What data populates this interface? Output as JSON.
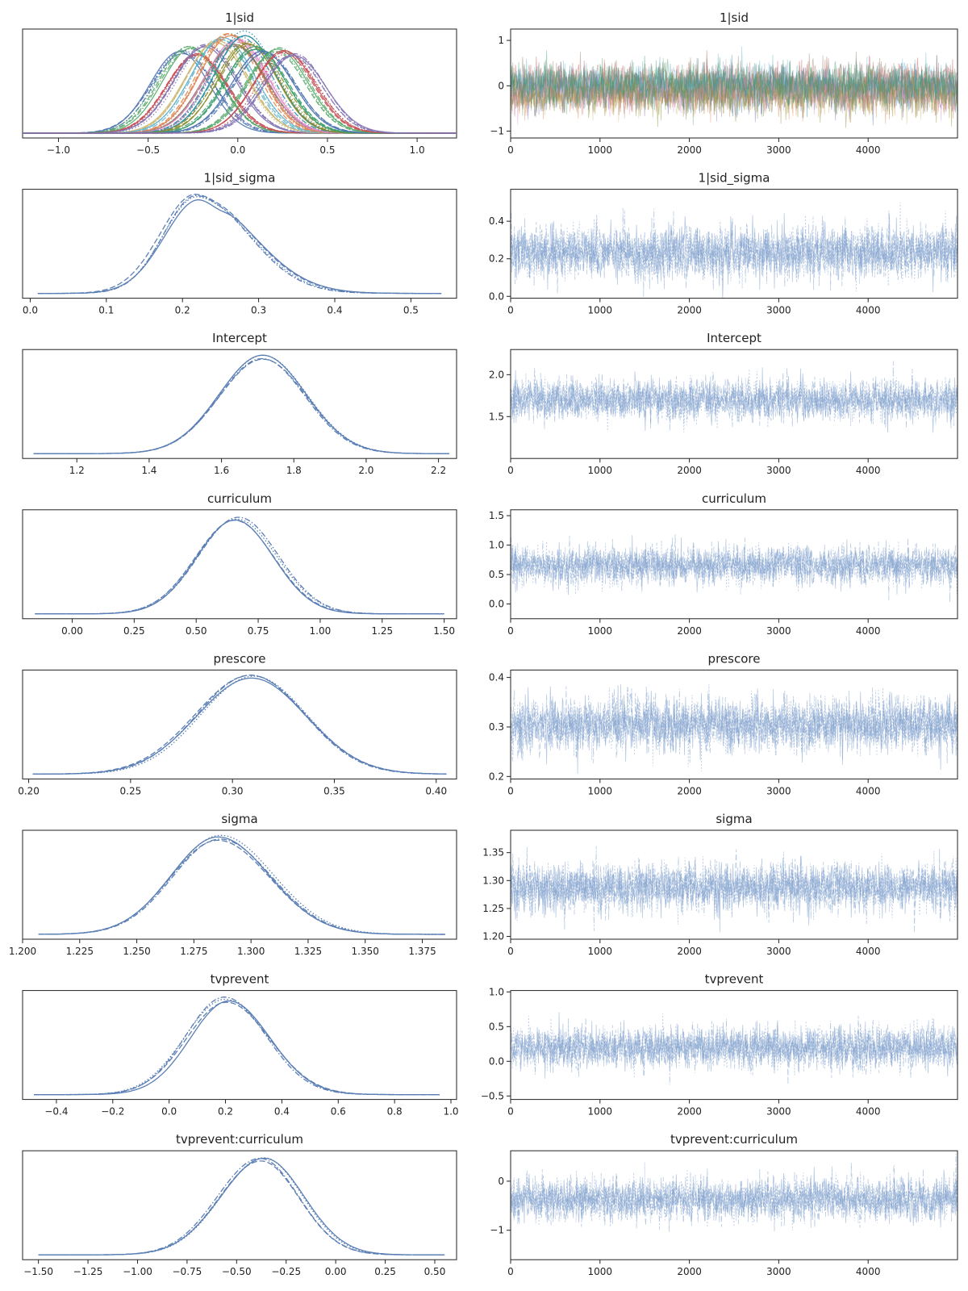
{
  "colors": {
    "primary": "#5b7fb5",
    "trace": "#7e9fcc",
    "multi": [
      "#4c72b0",
      "#55a868",
      "#c44e52",
      "#8172b2",
      "#ccb974",
      "#64b5cd",
      "#dd8452",
      "#937860",
      "#da8bc3",
      "#2f8fa3",
      "#8c8c2c",
      "#3a9c6d"
    ]
  },
  "chart_data": [
    {
      "name": "1|sid",
      "kde": {
        "type": "line",
        "title": "1|sid",
        "xlim": [
          -1.2,
          1.22
        ],
        "xticks": [
          -1.0,
          -0.5,
          0.0,
          0.5,
          1.0
        ],
        "xtick_labels": [
          "−1.0",
          "−0.5",
          "0.0",
          "0.5",
          "1.0"
        ],
        "multi_series": true,
        "groups": [
          {
            "mean": -0.31,
            "sd": 0.17,
            "peak": 0.82
          },
          {
            "mean": -0.27,
            "sd": 0.17,
            "peak": 0.85
          },
          {
            "mean": -0.22,
            "sd": 0.17,
            "peak": 0.78
          },
          {
            "mean": -0.17,
            "sd": 0.17,
            "peak": 0.88
          },
          {
            "mean": -0.12,
            "sd": 0.17,
            "peak": 0.92
          },
          {
            "mean": -0.08,
            "sd": 0.17,
            "peak": 0.95
          },
          {
            "mean": -0.05,
            "sd": 0.17,
            "peak": 0.98
          },
          {
            "mean": -0.02,
            "sd": 0.17,
            "peak": 0.9
          },
          {
            "mean": 0.0,
            "sd": 0.17,
            "peak": 0.93
          },
          {
            "mean": 0.03,
            "sd": 0.17,
            "peak": 1.0
          },
          {
            "mean": 0.06,
            "sd": 0.17,
            "peak": 0.9
          },
          {
            "mean": 0.1,
            "sd": 0.17,
            "peak": 0.85
          },
          {
            "mean": 0.15,
            "sd": 0.17,
            "peak": 0.82
          },
          {
            "mean": 0.22,
            "sd": 0.17,
            "peak": 0.84
          },
          {
            "mean": 0.27,
            "sd": 0.17,
            "peak": 0.83
          },
          {
            "mean": 0.31,
            "sd": 0.17,
            "peak": 0.8
          }
        ]
      },
      "trace": {
        "type": "line",
        "title": "1|sid",
        "draws": 5000,
        "xlim": [
          0,
          5000
        ],
        "xticks": [
          0,
          1000,
          2000,
          3000,
          4000
        ],
        "xtick_labels": [
          "0",
          "1000",
          "2000",
          "3000",
          "4000"
        ],
        "ylim": [
          -1.15,
          1.25
        ],
        "yticks": [
          -1,
          0,
          1
        ],
        "ytick_labels": [
          "−1",
          "0",
          "1"
        ],
        "mean": 0.0,
        "sd": 0.24,
        "multi_series": true
      }
    },
    {
      "name": "1|sid_sigma",
      "kde": {
        "type": "line",
        "title": "1|sid_sigma",
        "xlim": [
          -0.01,
          0.56
        ],
        "xticks": [
          0.0,
          0.1,
          0.2,
          0.3,
          0.4,
          0.5
        ],
        "xtick_labels": [
          "0.0",
          "0.1",
          "0.2",
          "0.3",
          "0.4",
          "0.5"
        ],
        "mode": 0.22,
        "sd_left": 0.045,
        "sd_right": 0.07,
        "range": [
          0.01,
          0.54
        ],
        "bimodal_top": true
      },
      "trace": {
        "type": "line",
        "title": "1|sid_sigma",
        "draws": 5000,
        "xlim": [
          0,
          5000
        ],
        "xticks": [
          0,
          1000,
          2000,
          3000,
          4000
        ],
        "xtick_labels": [
          "0",
          "1000",
          "2000",
          "3000",
          "4000"
        ],
        "ylim": [
          -0.01,
          0.57
        ],
        "yticks": [
          0.0,
          0.2,
          0.4
        ],
        "ytick_labels": [
          "0.0",
          "0.2",
          "0.4"
        ],
        "mean": 0.235,
        "sd": 0.07
      }
    },
    {
      "name": "Intercept",
      "kde": {
        "type": "line",
        "title": "Intercept",
        "xlim": [
          1.05,
          2.25
        ],
        "xticks": [
          1.2,
          1.4,
          1.6,
          1.8,
          2.0,
          2.2
        ],
        "xtick_labels": [
          "1.2",
          "1.4",
          "1.6",
          "1.8",
          "2.0",
          "2.2"
        ],
        "mode": 1.71,
        "sd_left": 0.12,
        "sd_right": 0.12,
        "range": [
          1.08,
          2.23
        ]
      },
      "trace": {
        "type": "line",
        "title": "Intercept",
        "draws": 5000,
        "xlim": [
          0,
          5000
        ],
        "xticks": [
          0,
          1000,
          2000,
          3000,
          4000
        ],
        "xtick_labels": [
          "0",
          "1000",
          "2000",
          "3000",
          "4000"
        ],
        "ylim": [
          1.0,
          2.3
        ],
        "yticks": [
          1.5,
          2.0
        ],
        "ytick_labels": [
          "1.5",
          "2.0"
        ],
        "mean": 1.7,
        "sd": 0.12
      }
    },
    {
      "name": "curriculum",
      "kde": {
        "type": "line",
        "title": "curriculum",
        "xlim": [
          -0.2,
          1.55
        ],
        "xticks": [
          0.0,
          0.25,
          0.5,
          0.75,
          1.0,
          1.25,
          1.5
        ],
        "xtick_labels": [
          "0.00",
          "0.25",
          "0.50",
          "0.75",
          "1.00",
          "1.25",
          "1.50"
        ],
        "mode": 0.665,
        "sd_left": 0.16,
        "sd_right": 0.16,
        "range": [
          -0.15,
          1.5
        ]
      },
      "trace": {
        "type": "line",
        "title": "curriculum",
        "draws": 5000,
        "xlim": [
          0,
          5000
        ],
        "xticks": [
          0,
          1000,
          2000,
          3000,
          4000
        ],
        "xtick_labels": [
          "0",
          "1000",
          "2000",
          "3000",
          "4000"
        ],
        "ylim": [
          -0.25,
          1.6
        ],
        "yticks": [
          0.0,
          0.5,
          1.0,
          1.5
        ],
        "ytick_labels": [
          "0.0",
          "0.5",
          "1.0",
          "1.5"
        ],
        "mean": 0.66,
        "sd": 0.16
      }
    },
    {
      "name": "prescore",
      "kde": {
        "type": "line",
        "title": "prescore",
        "xlim": [
          0.197,
          0.41
        ],
        "xticks": [
          0.2,
          0.25,
          0.3,
          0.35,
          0.4
        ],
        "xtick_labels": [
          "0.20",
          "0.25",
          "0.30",
          "0.35",
          "0.40"
        ],
        "mode": 0.31,
        "sd_left": 0.027,
        "sd_right": 0.027,
        "range": [
          0.202,
          0.405
        ]
      },
      "trace": {
        "type": "line",
        "title": "prescore",
        "draws": 5000,
        "xlim": [
          0,
          5000
        ],
        "xticks": [
          0,
          1000,
          2000,
          3000,
          4000
        ],
        "xtick_labels": [
          "0",
          "1000",
          "2000",
          "3000",
          "4000"
        ],
        "ylim": [
          0.195,
          0.415
        ],
        "yticks": [
          0.2,
          0.3,
          0.4
        ],
        "ytick_labels": [
          "0.2",
          "0.3",
          "0.4"
        ],
        "mean": 0.305,
        "sd": 0.027
      }
    },
    {
      "name": "sigma",
      "kde": {
        "type": "line",
        "title": "sigma",
        "xlim": [
          1.2,
          1.39
        ],
        "xticks": [
          1.2,
          1.225,
          1.25,
          1.275,
          1.3,
          1.325,
          1.35,
          1.375
        ],
        "xtick_labels": [
          "1.200",
          "1.225",
          "1.250",
          "1.275",
          "1.300",
          "1.325",
          "1.350",
          "1.375"
        ],
        "mode": 1.286,
        "sd_left": 0.021,
        "sd_right": 0.023,
        "range": [
          1.207,
          1.385
        ]
      },
      "trace": {
        "type": "line",
        "title": "sigma",
        "draws": 5000,
        "xlim": [
          0,
          5000
        ],
        "xticks": [
          0,
          1000,
          2000,
          3000,
          4000
        ],
        "xtick_labels": [
          "0",
          "1000",
          "2000",
          "3000",
          "4000"
        ],
        "ylim": [
          1.195,
          1.39
        ],
        "yticks": [
          1.2,
          1.25,
          1.3,
          1.35
        ],
        "ytick_labels": [
          "1.20",
          "1.25",
          "1.30",
          "1.35"
        ],
        "mean": 1.288,
        "sd": 0.022
      }
    },
    {
      "name": "tvprevent",
      "kde": {
        "type": "line",
        "title": "tvprevent",
        "xlim": [
          -0.52,
          1.02
        ],
        "xticks": [
          -0.4,
          -0.2,
          0.0,
          0.2,
          0.4,
          0.6,
          0.8,
          1.0
        ],
        "xtick_labels": [
          "−0.4",
          "−0.2",
          "0.0",
          "0.2",
          "0.4",
          "0.6",
          "0.8",
          "1.0"
        ],
        "mode": 0.205,
        "sd_left": 0.14,
        "sd_right": 0.15,
        "range": [
          -0.48,
          0.96
        ]
      },
      "trace": {
        "type": "line",
        "title": "tvprevent",
        "draws": 5000,
        "xlim": [
          0,
          5000
        ],
        "xticks": [
          0,
          1000,
          2000,
          3000,
          4000
        ],
        "xtick_labels": [
          "0",
          "1000",
          "2000",
          "3000",
          "4000"
        ],
        "ylim": [
          -0.55,
          1.02
        ],
        "yticks": [
          -0.5,
          0.0,
          0.5,
          1.0
        ],
        "ytick_labels": [
          "−0.5",
          "0.0",
          "0.5",
          "1.0"
        ],
        "mean": 0.2,
        "sd": 0.15
      }
    },
    {
      "name": "tvprevent:curriculum",
      "kde": {
        "type": "line",
        "title": "tvprevent:curriculum",
        "xlim": [
          -1.58,
          0.61
        ],
        "xticks": [
          -1.5,
          -1.25,
          -1.0,
          -0.75,
          -0.5,
          -0.25,
          0.0,
          0.25,
          0.5
        ],
        "xtick_labels": [
          "−1.50",
          "−1.25",
          "−1.00",
          "−0.75",
          "−0.50",
          "−0.25",
          "0.00",
          "0.25",
          "0.50"
        ],
        "mode": -0.37,
        "sd_left": 0.22,
        "sd_right": 0.2,
        "range": [
          -1.5,
          0.55
        ]
      },
      "trace": {
        "type": "line",
        "title": "tvprevent:curriculum",
        "draws": 5000,
        "xlim": [
          0,
          5000
        ],
        "xticks": [
          0,
          1000,
          2000,
          3000,
          4000
        ],
        "xtick_labels": [
          "0",
          "1000",
          "2000",
          "3000",
          "4000"
        ],
        "ylim": [
          -1.6,
          0.62
        ],
        "yticks": [
          -1,
          0
        ],
        "ytick_labels": [
          "−1",
          "0"
        ],
        "mean": -0.37,
        "sd": 0.22
      }
    }
  ]
}
